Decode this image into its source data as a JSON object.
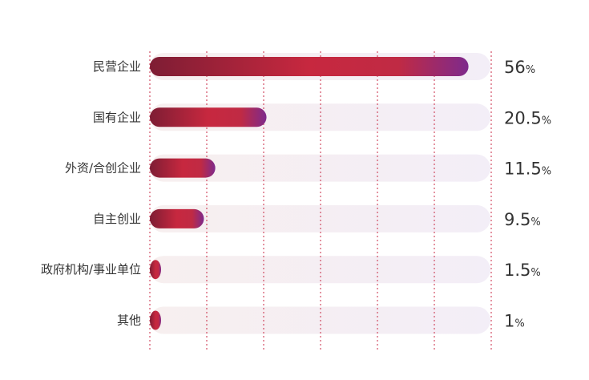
{
  "chart_data": {
    "type": "bar",
    "orientation": "horizontal",
    "categories": [
      "民营企业",
      "国有企业",
      "外资/合创企业",
      "自主创业",
      "政府机构/事业单位",
      "其他"
    ],
    "values": [
      56,
      20.5,
      11.5,
      9.5,
      1.5,
      1
    ],
    "value_labels": [
      "56",
      "20.5",
      "11.5",
      "9.5",
      "1.5",
      "1"
    ],
    "unit": "%",
    "xlim": [
      0,
      60
    ],
    "grid": "dotted vertical",
    "legend": "none",
    "title": "",
    "xlabel": "",
    "ylabel": ""
  },
  "colors": {
    "bar_start": "#7e1d34",
    "bar_mid": "#c7283f",
    "bar_end": "#7e2a8c",
    "track": "#f6f1f8",
    "grid": "#c82a44",
    "text": "#333333"
  }
}
